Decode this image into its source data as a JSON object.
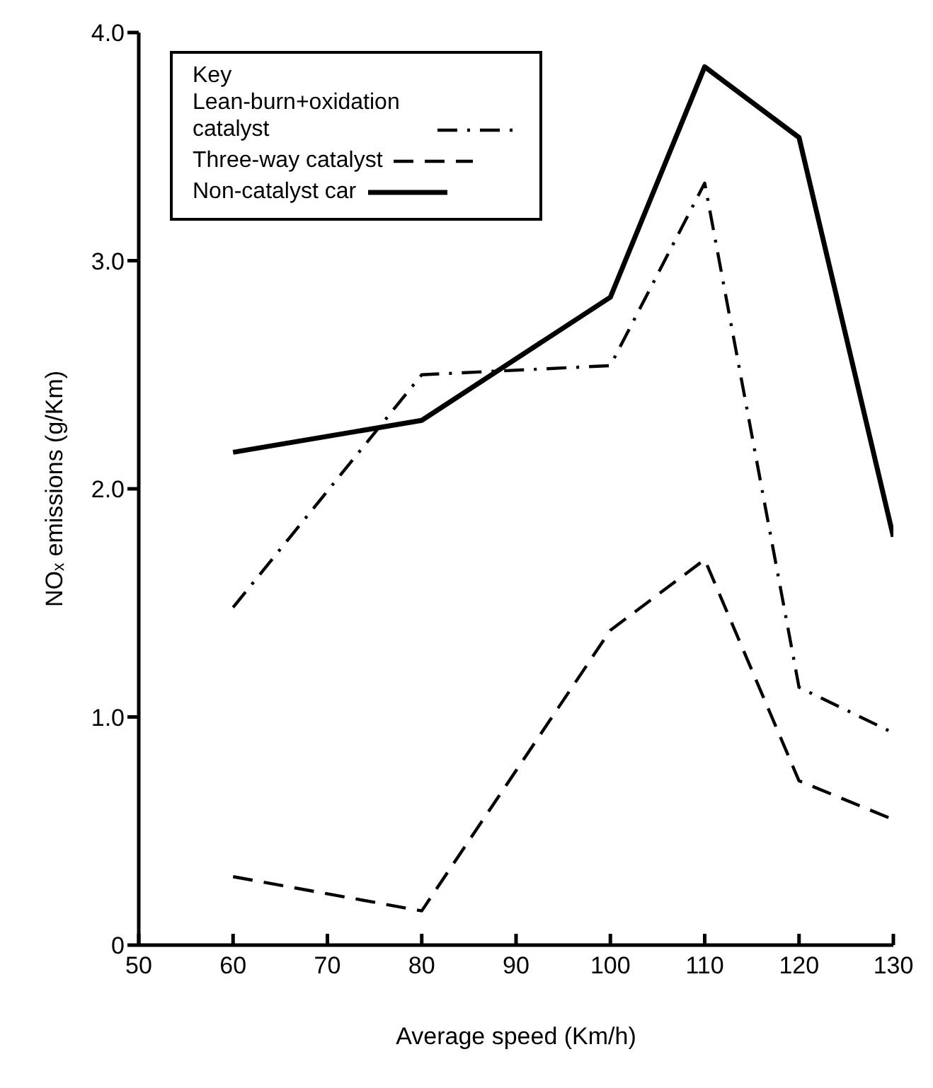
{
  "chart_data": {
    "type": "line",
    "xlabel": "Average speed (Km/h)",
    "ylabel": "NOₓ emissions (g/Km)",
    "legend_title": "Key",
    "legend": "top left",
    "grid": false,
    "marker": "none",
    "x": [
      60,
      80,
      100,
      110,
      120,
      130
    ],
    "xlim": [
      50,
      130
    ],
    "xticks": [
      50,
      60,
      70,
      80,
      90,
      100,
      110,
      120,
      130
    ],
    "ylim": [
      0,
      4
    ],
    "yticks": [
      {
        "value": 0,
        "label": "0"
      },
      {
        "value": 1,
        "label": "1.0"
      },
      {
        "value": 2,
        "label": "2.0"
      },
      {
        "value": 3,
        "label": "3.0"
      },
      {
        "value": 4,
        "label": "4.0"
      }
    ],
    "series": [
      {
        "name": "Lean-burn+oxidation catalyst",
        "color": "#000000",
        "line_style": "dashdot",
        "values": [
          1.48,
          2.5,
          2.54,
          3.34,
          1.13,
          0.93
        ]
      },
      {
        "name": "Three-way catalyst",
        "color": "#000000",
        "line_style": "dashed",
        "values": [
          0.3,
          0.15,
          1.38,
          1.69,
          0.72,
          0.55
        ]
      },
      {
        "name": "Non-catalyst car",
        "color": "#000000",
        "line_style": "solid",
        "values": [
          2.16,
          2.3,
          2.84,
          3.85,
          3.54,
          1.79
        ]
      }
    ]
  }
}
